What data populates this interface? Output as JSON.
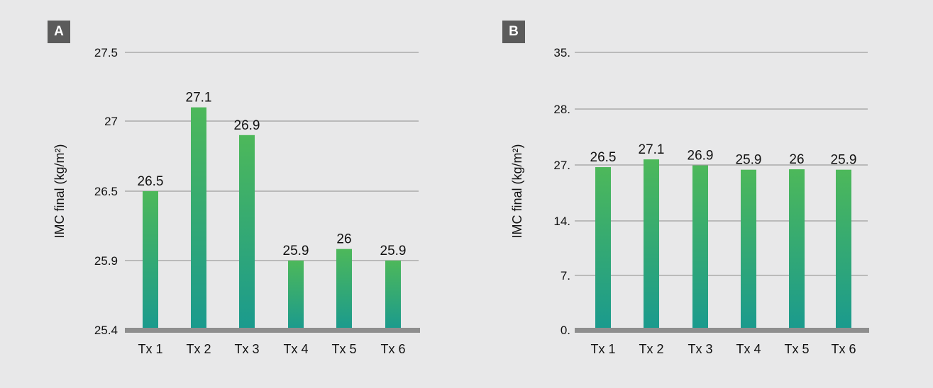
{
  "panels": [
    {
      "id": "A"
    },
    {
      "id": "B"
    }
  ],
  "chart_data": [
    {
      "type": "bar",
      "panel": "A",
      "ylabel": "IMC final (kg/m²)",
      "categories": [
        "Tx 1",
        "Tx 2",
        "Tx 3",
        "Tx 4",
        "Tx 5",
        "Tx 6"
      ],
      "values": [
        26.5,
        27.1,
        26.9,
        25.9,
        26,
        25.9
      ],
      "data_labels": [
        "26.5",
        "27.1",
        "26.9",
        "25.9",
        "26",
        "25.9"
      ],
      "yticks": [
        25.4,
        25.9,
        26.5,
        27,
        27.5
      ],
      "ytick_labels": [
        "25.4",
        "25.9",
        "26.5",
        "27",
        "27.5"
      ],
      "ylim": [
        25.4,
        27.5
      ],
      "grid": true,
      "colors": {
        "bar_top": "#4db85a",
        "bar_bottom": "#1a9a8e",
        "baseline": "#8e8e8e",
        "grid": "#8c8c8c"
      }
    },
    {
      "type": "bar",
      "panel": "B",
      "ylabel": "IMC final (kg/m²)",
      "categories": [
        "Tx 1",
        "Tx 2",
        "Tx 3",
        "Tx 4",
        "Tx 5",
        "Tx 6"
      ],
      "values": [
        26.5,
        27.1,
        26.9,
        25.9,
        26,
        25.9
      ],
      "data_labels": [
        "26.5",
        "27.1",
        "26.9",
        "25.9",
        "26",
        "25.9"
      ],
      "yticks": [
        0,
        7,
        14,
        27,
        28,
        35
      ],
      "ytick_labels": [
        "0.",
        "7.",
        "14.",
        "27.",
        "28.",
        "35."
      ],
      "ylim": [
        0,
        35
      ],
      "grid": true,
      "colors": {
        "bar_top": "#4db85a",
        "bar_bottom": "#1a9a8e",
        "baseline": "#8e8e8e",
        "grid": "#8c8c8c"
      }
    }
  ]
}
